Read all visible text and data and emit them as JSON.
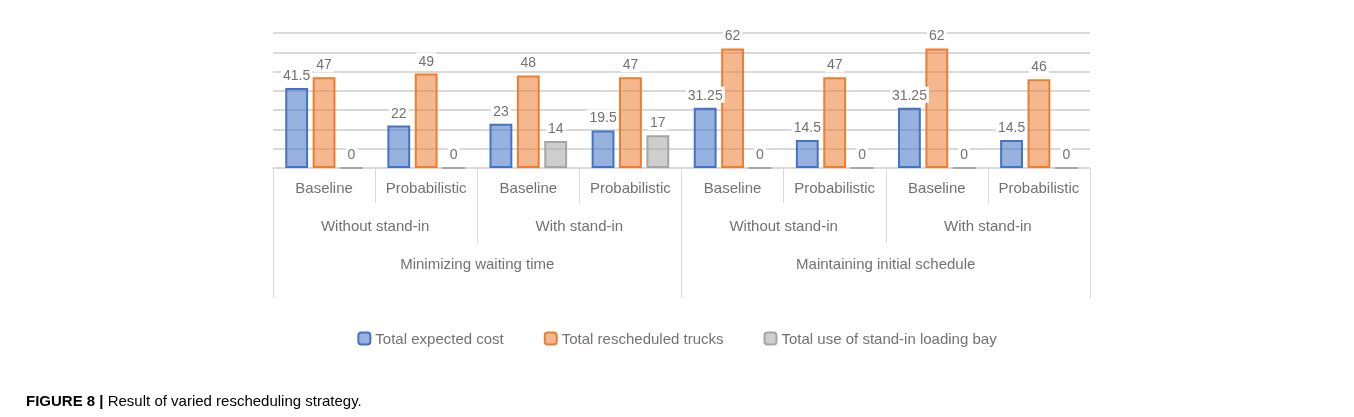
{
  "chart_data": {
    "type": "bar",
    "categories": [
      "Baseline",
      "Probabilistic",
      "Baseline",
      "Probabilistic",
      "Baseline",
      "Probabilistic",
      "Baseline",
      "Probabilistic"
    ],
    "series": [
      {
        "name": "Total expected cost",
        "color": "#4472c4",
        "values": [
          41.5,
          22,
          23,
          19.5,
          31.25,
          14.5,
          31.25,
          14.5
        ]
      },
      {
        "name": "Total rescheduled trucks",
        "color": "#ed7d31",
        "values": [
          47,
          49,
          48,
          47,
          62,
          47,
          62,
          46
        ]
      },
      {
        "name": "Total use of stand-in loading bay",
        "color": "#a5a5a5",
        "values": [
          0,
          0,
          14,
          17,
          0,
          0,
          0,
          0
        ]
      }
    ],
    "annotations": [
      "Without stand-in",
      "With stand-in",
      "Without stand-in",
      "With stand-in",
      "Minimizing waiting time",
      "Maintaining initial schedule",
      "FIGURE 8 | Result of varied rescheduling strategy."
    ],
    "grid": "y",
    "data_labels": true,
    "legend": "bottom",
    "tick_labels": "x"
  }
}
